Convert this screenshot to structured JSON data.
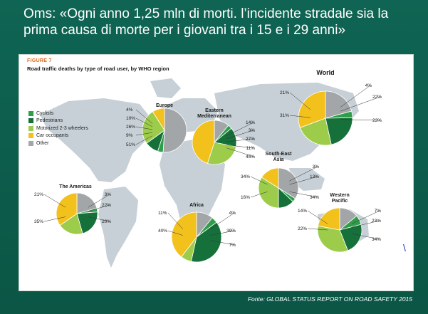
{
  "slide": {
    "title": "Oms: «Ogni anno 1,25 mln di morti. l’incidente stradale sia la prima causa di morte per i giovani tra i 15 e i 29 anni»",
    "source": "Fonte: GLOBAL STATUS REPORT ON ROAD SAFETY 2015"
  },
  "colors": {
    "cyclists": "#2e9e49",
    "pedestrians": "#16703a",
    "motorized": "#9ccc4a",
    "car": "#f2c11c",
    "other": "#a3a6a8",
    "map": "#c6d0d6",
    "panel": "#ffffff",
    "slide_bg": "#0d5a4a"
  },
  "chart_data": {
    "type": "pie",
    "label": "FIGURE 7",
    "title": "Road traffic deaths by type of road user, by WHO region",
    "legend": {
      "placement": "left",
      "entries": [
        "Cyclists",
        "Pedestrians",
        "Motorized 2-3 wheelers",
        "Car occupants",
        "Other"
      ]
    },
    "regions": [
      {
        "name": "World",
        "values": {
          "cyclists": 4,
          "pedestrians": 22,
          "motorized": 23,
          "car": 31,
          "other": 21
        },
        "labels": [
          "4%",
          "22%",
          "23%",
          "31%",
          "21%"
        ]
      },
      {
        "name": "Europe",
        "values": {
          "cyclists": 4,
          "pedestrians": 10,
          "motorized": 26,
          "car": 9,
          "other": 51
        },
        "labels": [
          "4%",
          "10%",
          "26%",
          "9%",
          "51%"
        ]
      },
      {
        "name": "Eastern Mediterranean",
        "values": {
          "cyclists": 3,
          "pedestrians": 14,
          "motorized": 27,
          "car": 45,
          "other": 11
        },
        "labels": [
          "14%",
          "3%",
          "27%",
          "11%",
          "45%"
        ]
      },
      {
        "name": "South-East Asia",
        "values": {
          "cyclists": 3,
          "pedestrians": 13,
          "motorized": 34,
          "car": 16,
          "other": 34
        },
        "labels": [
          "3%",
          "13%",
          "34%",
          "16%",
          "34%"
        ]
      },
      {
        "name": "The Americas",
        "values": {
          "cyclists": 3,
          "pedestrians": 22,
          "motorized": 20,
          "car": 35,
          "other": 21
        },
        "labels": [
          "21%",
          "3%",
          "22%",
          "20%",
          "35%"
        ]
      },
      {
        "name": "Africa",
        "values": {
          "cyclists": 4,
          "pedestrians": 39,
          "motorized": 7,
          "car": 40,
          "other": 11
        },
        "labels": [
          "11%",
          "4%",
          "39%",
          "7%",
          "40%"
        ]
      },
      {
        "name": "Western Pacific",
        "values": {
          "cyclists": 7,
          "pedestrians": 23,
          "motorized": 34,
          "car": 22,
          "other": 14
        },
        "labels": [
          "14%",
          "7%",
          "23%",
          "34%",
          "22%"
        ]
      }
    ]
  }
}
